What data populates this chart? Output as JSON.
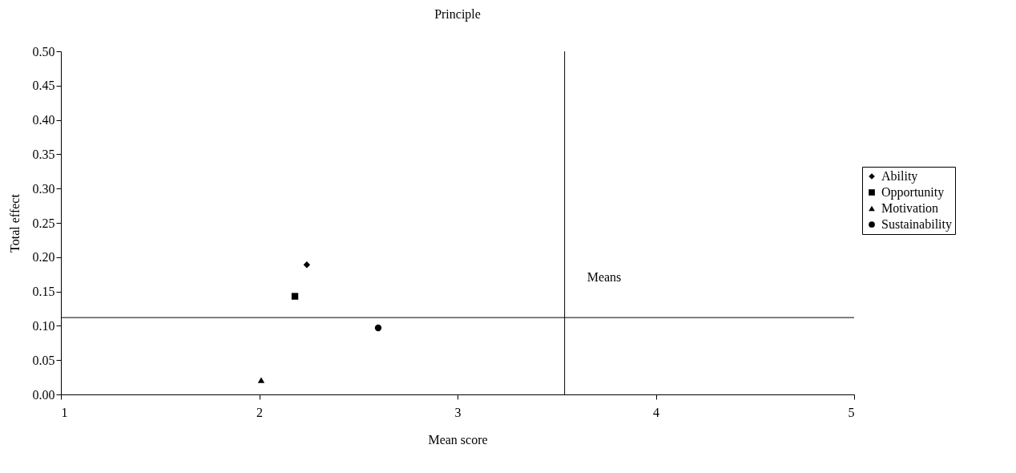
{
  "chart_data": {
    "type": "scatter",
    "title": "Principle",
    "xlabel": "Mean score",
    "ylabel": "Total effect",
    "series": [
      {
        "name": "Ability",
        "color": "#000000",
        "marker": "diamond",
        "x": [
          2.24
        ],
        "values": [
          0.189
        ]
      },
      {
        "name": "Opportunity",
        "color": "#000000",
        "marker": "square",
        "x": [
          2.18
        ],
        "values": [
          0.143
        ]
      },
      {
        "name": "Motivation",
        "color": "#000000",
        "marker": "triangle",
        "x": [
          2.01
        ],
        "values": [
          0.021
        ]
      },
      {
        "name": "Sustainability",
        "color": "#000000",
        "marker": "circle",
        "x": [
          2.6
        ],
        "values": [
          0.097
        ]
      }
    ],
    "xlim": [
      1,
      5
    ],
    "xticks": [
      1,
      2,
      3,
      4,
      5
    ],
    "ylim": [
      0,
      0.5
    ],
    "yticks": [
      {
        "value": 0,
        "label": "0.00"
      },
      {
        "value": 0.05,
        "label": "0.05"
      },
      {
        "value": 0.1,
        "label": "0.10"
      },
      {
        "value": 0.15,
        "label": "0.15"
      },
      {
        "value": 0.2,
        "label": "0.20"
      },
      {
        "value": 0.25,
        "label": "0.25"
      },
      {
        "value": 0.3,
        "label": "0.30"
      },
      {
        "value": 0.35,
        "label": "0.35"
      },
      {
        "value": 0.4,
        "label": "0.40"
      },
      {
        "value": 0.45,
        "label": "0.45"
      },
      {
        "value": 0.5,
        "label": "0.50"
      }
    ],
    "ref_lines": [
      {
        "axis": "x",
        "value": 3.54,
        "color": "#000000",
        "label": "Means"
      },
      {
        "axis": "y",
        "value": 0.112,
        "color": "#000000"
      }
    ],
    "grid": false,
    "legend": "right"
  }
}
